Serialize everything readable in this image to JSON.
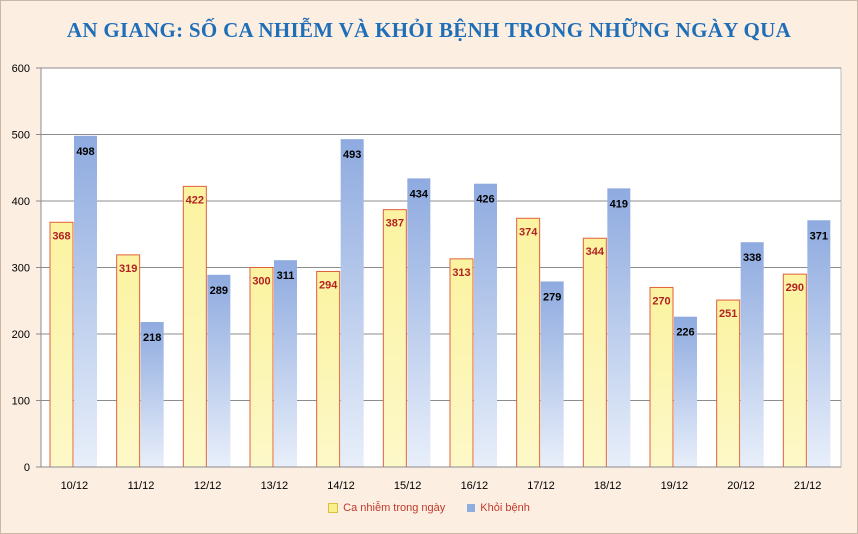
{
  "chart_data": {
    "type": "bar",
    "title": "AN GIANG: SỐ CA NHIỄM VÀ KHỎI BỆNH TRONG NHỮNG NGÀY QUA",
    "categories": [
      "10/12",
      "11/12",
      "12/12",
      "13/12",
      "14/12",
      "15/12",
      "16/12",
      "17/12",
      "18/12",
      "19/12",
      "20/12",
      "21/12"
    ],
    "series": [
      {
        "name": "Ca nhiễm trong ngày",
        "values": [
          368,
          319,
          422,
          300,
          294,
          387,
          313,
          374,
          344,
          270,
          251,
          290
        ],
        "color": "#f7f08c",
        "border": "#e0603a",
        "label_color": "#b22222"
      },
      {
        "name": "Khỏi bệnh",
        "values": [
          498,
          218,
          289,
          311,
          493,
          434,
          426,
          279,
          419,
          226,
          338,
          371
        ],
        "color": "#8faee0",
        "border": "#8faee0",
        "label_color": "#000000"
      }
    ],
    "ylim": [
      0,
      600
    ],
    "yticks": [
      0,
      100,
      200,
      300,
      400,
      500,
      600
    ],
    "grid": true,
    "legend_position": "bottom"
  }
}
